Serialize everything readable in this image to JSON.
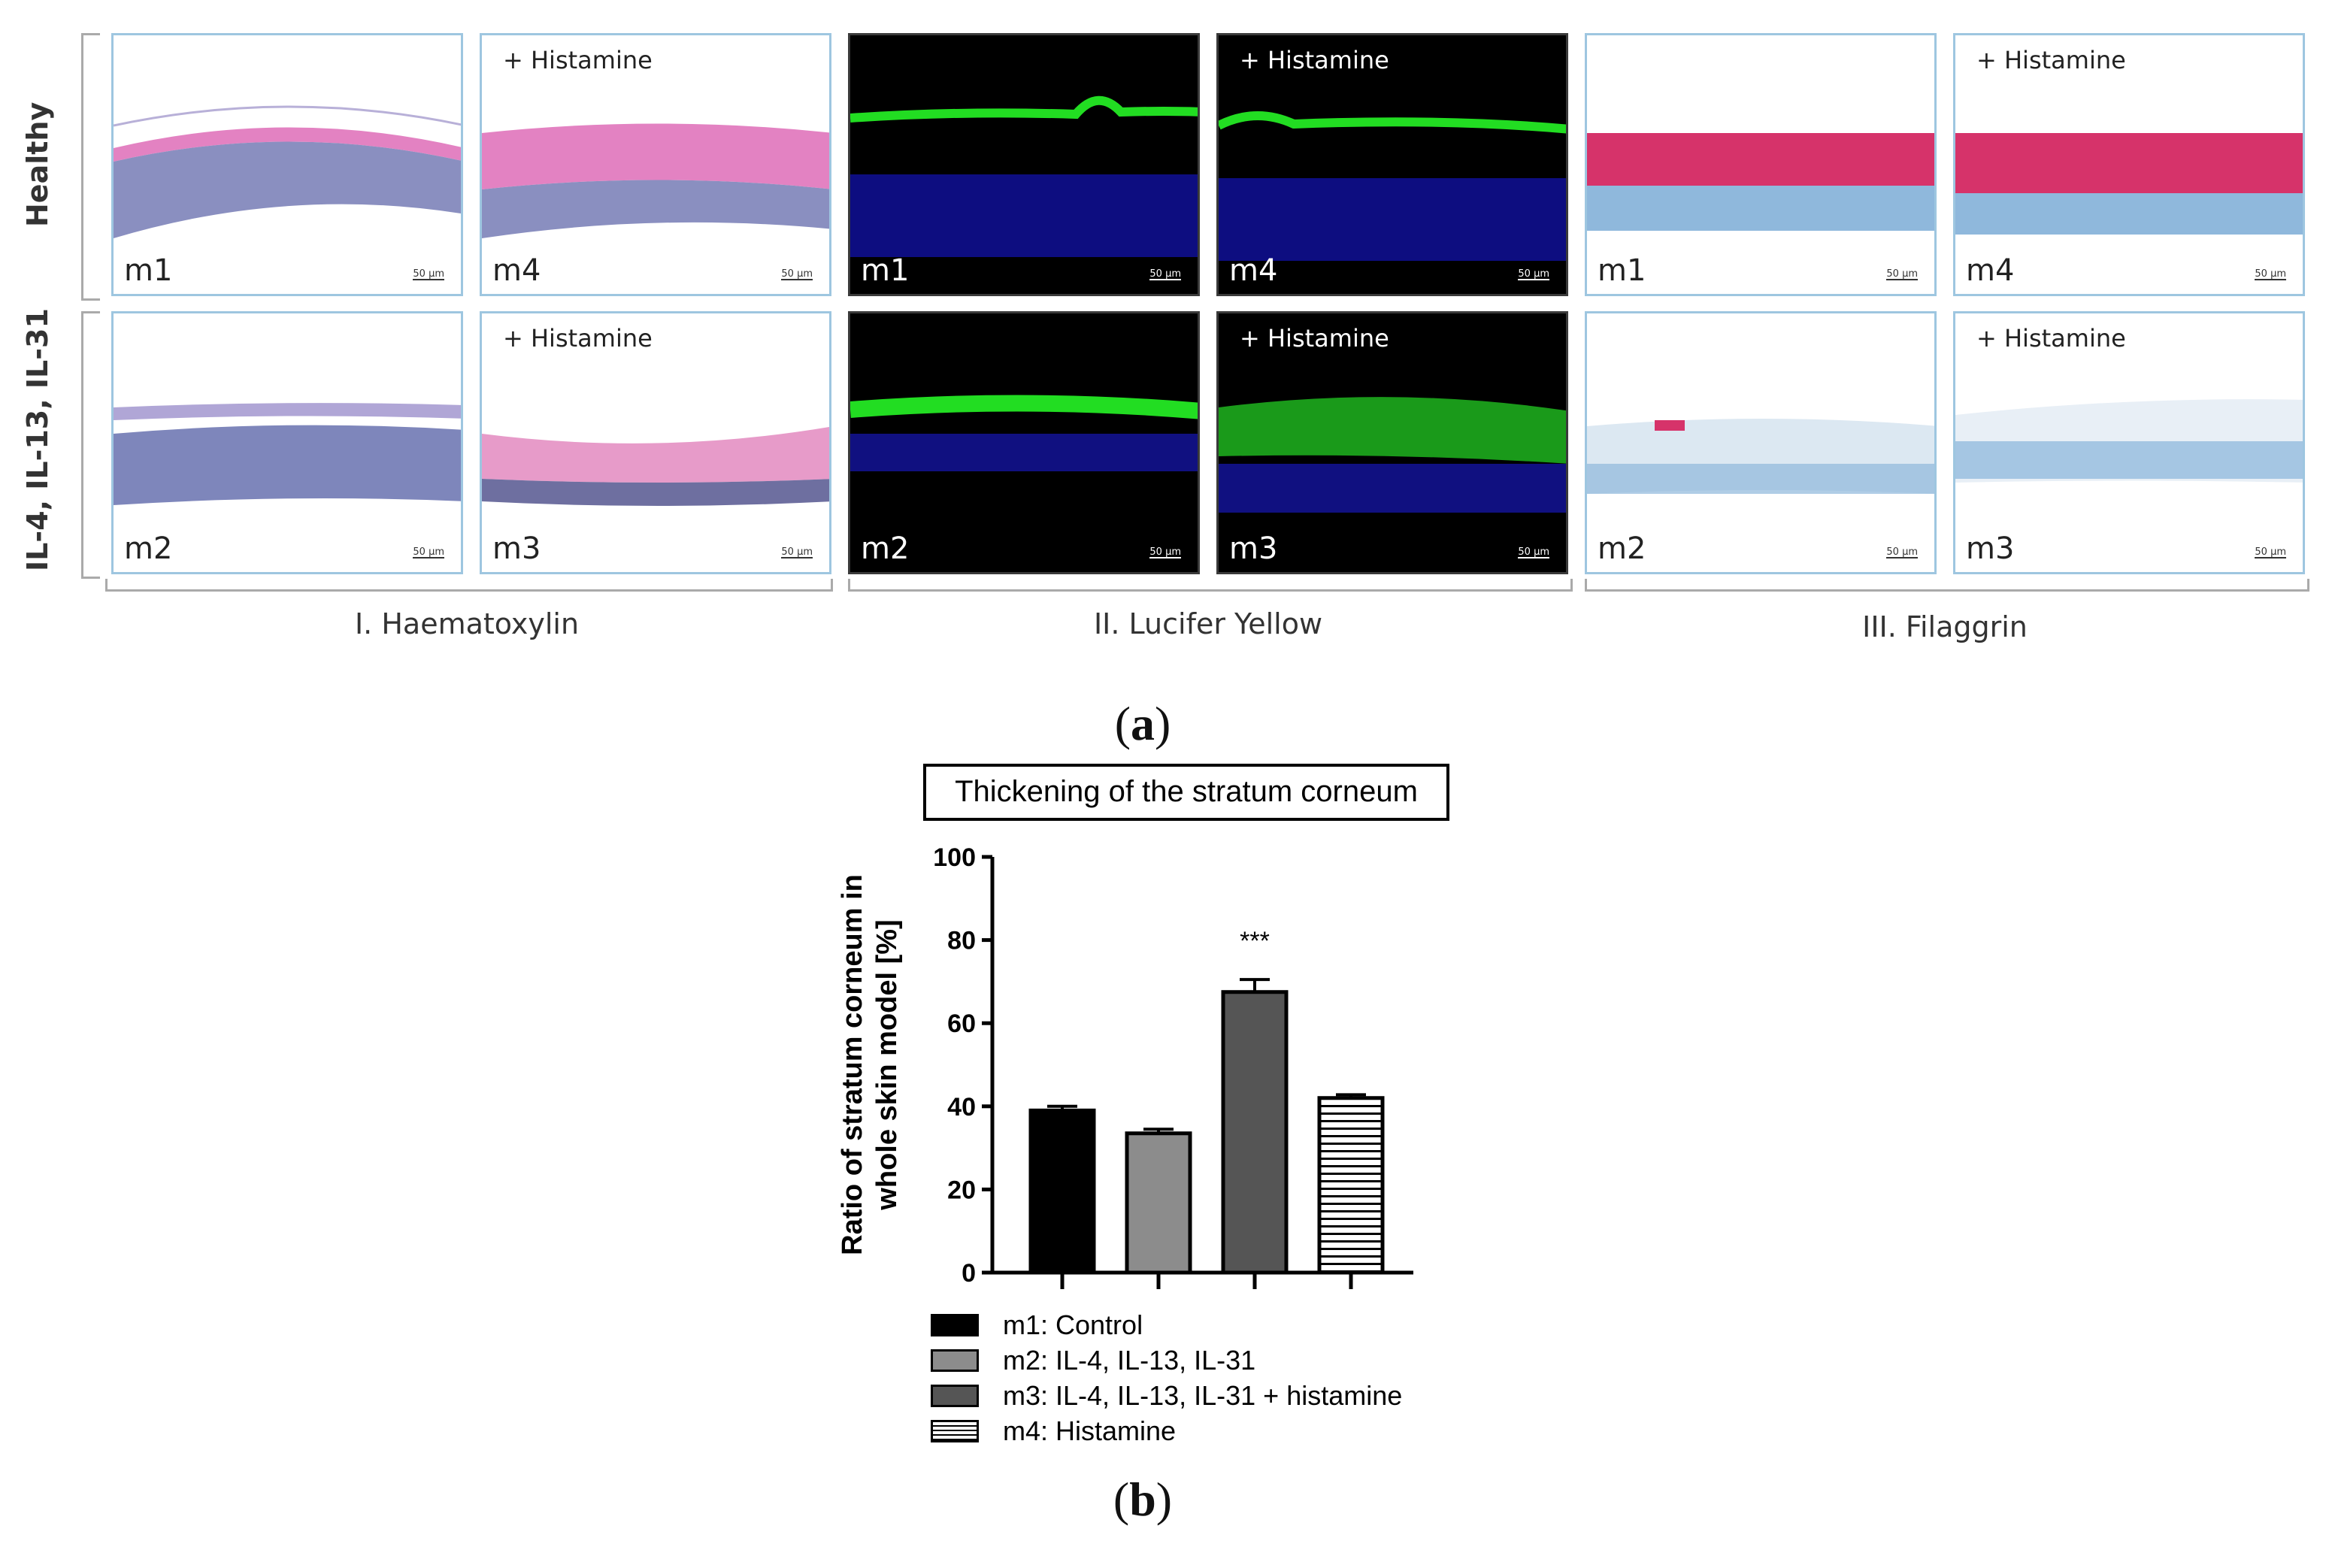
{
  "figure_a": {
    "label": "a",
    "row_labels": [
      "Healthy",
      "IL-4, IL-13, IL-31"
    ],
    "column_labels": [
      "I. Haematoxylin",
      "II. Lucifer Yellow",
      "III. Filaggrin"
    ],
    "treatment_label": "+ Histamine",
    "scale_bar": "50 µm",
    "panels": [
      {
        "label": "m1"
      },
      {
        "label": "m4"
      },
      {
        "label": "m1"
      },
      {
        "label": "m4"
      },
      {
        "label": "m1"
      },
      {
        "label": "m4"
      },
      {
        "label": "m2"
      },
      {
        "label": "m3"
      },
      {
        "label": "m2"
      },
      {
        "label": "m3"
      },
      {
        "label": "m2"
      },
      {
        "label": "m3"
      }
    ]
  },
  "figure_b": {
    "label": "b"
  },
  "chart_data": {
    "type": "bar",
    "title": "Thickening of the stratum corneum",
    "xlabel": "",
    "ylabel": "Ratio of stratum corneum in whole skin model [%]",
    "ylabel_lines": [
      "Ratio of stratum corneum in",
      "whole skin model [%]"
    ],
    "ylim": [
      0,
      100
    ],
    "yticks": [
      0,
      20,
      40,
      60,
      80,
      100
    ],
    "categories": [
      "m1",
      "m2",
      "m3",
      "m4"
    ],
    "values": [
      39,
      33.5,
      67.5,
      42
    ],
    "errors": [
      1,
      1,
      3,
      0.8
    ],
    "significance": [
      "",
      "",
      "***",
      ""
    ],
    "colors": [
      "#000000",
      "#8c8c8c",
      "#555555",
      "#ffffff"
    ],
    "patterns": [
      "solid",
      "solid",
      "solid",
      "horizontal-lines"
    ],
    "legend": [
      "m1: Control",
      "m2: IL-4, IL-13, IL-31",
      "m3: IL-4, IL-13, IL-31 + histamine",
      "m4: Histamine"
    ]
  }
}
